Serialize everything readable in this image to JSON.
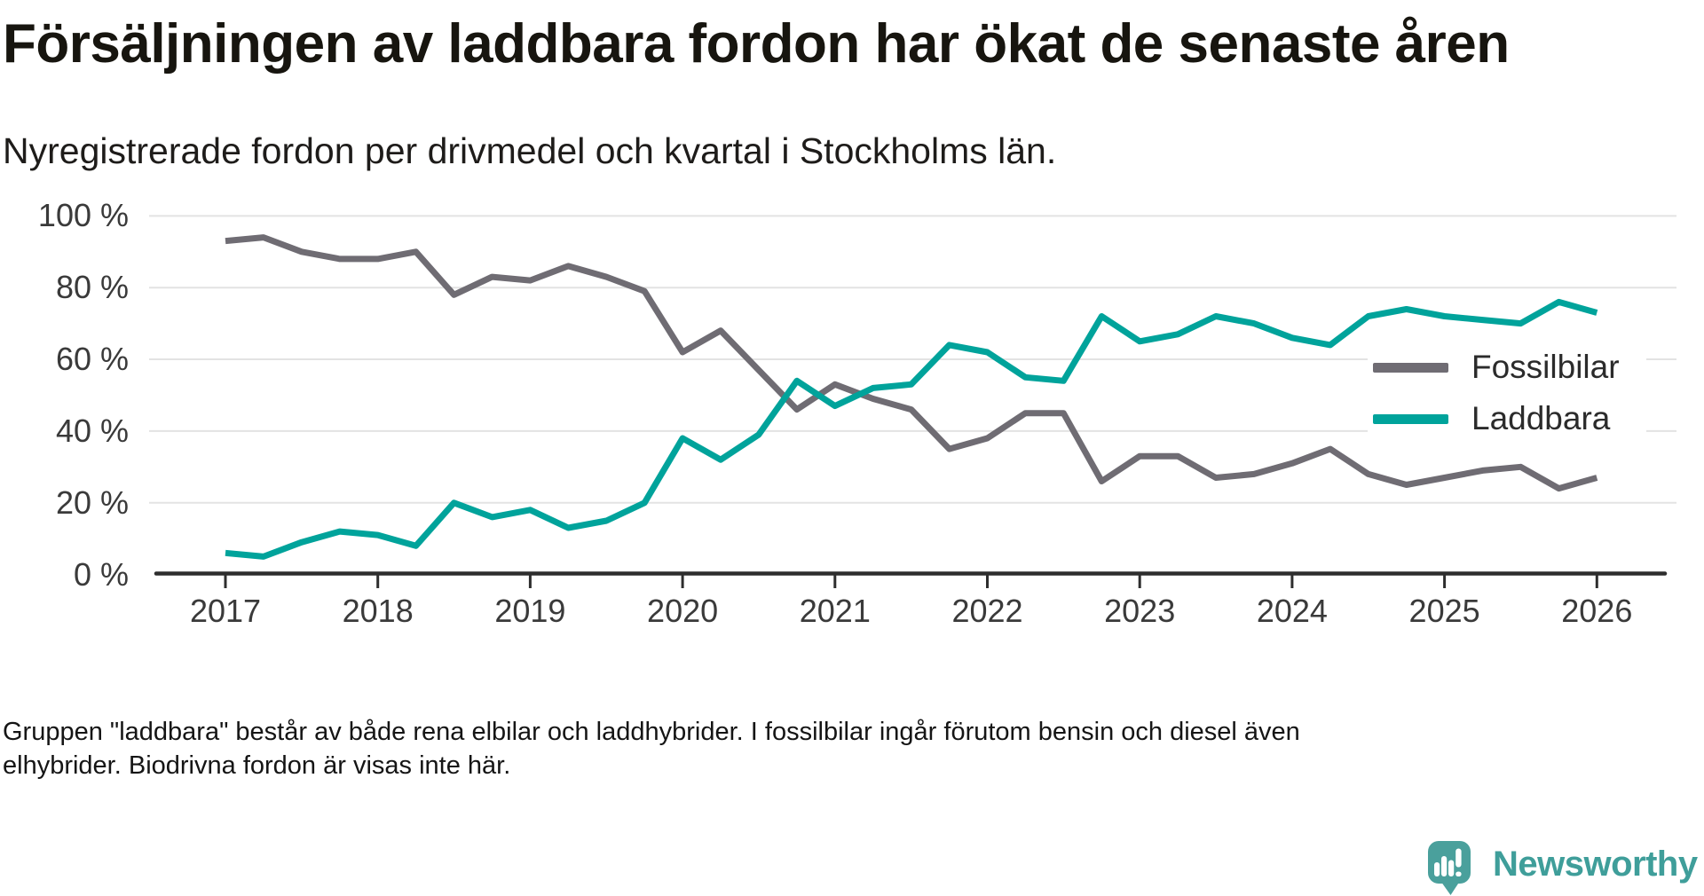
{
  "header": {
    "title": "Försäljningen av laddbara fordon har ökat de senaste åren",
    "subtitle": "Nyregistrerade fordon per drivmedel och kvartal i Stockholms län."
  },
  "footer": {
    "line1": "Gruppen \"laddbara\" består av både rena elbilar och laddhybrider. I fossilbilar ingår förutom bensin och diesel även",
    "line2": "elhybrider. Biodrivna fordon är visas inte här."
  },
  "branding": {
    "logo_text": "Newsworthy",
    "logo_icon": "bar-chart-exclamation-bubble-icon",
    "bubble_color": "#4aa09c",
    "text_color": "#3f9e9a"
  },
  "colors": {
    "fossil_gray": "#6f6c73",
    "laddbara_teal": "#00a39b",
    "gridline": "#e3e3e3",
    "axis": "#2e2e2e",
    "axis_label": "#3a3a3a"
  },
  "chart_data": {
    "type": "line",
    "title": "Försäljningen av laddbara fordon har ökat de senaste åren",
    "subtitle": "Nyregistrerade fordon per drivmedel och kvartal i Stockholms län.",
    "x_unit": "quarter",
    "x_start": "2017 Q1",
    "x_end": "2026 Q1",
    "x_tick_labels": [
      "2017",
      "2018",
      "2019",
      "2020",
      "2021",
      "2022",
      "2023",
      "2024",
      "2025",
      "2026"
    ],
    "y_tick_labels": [
      "0 %",
      "20 %",
      "40 %",
      "60 %",
      "80 %",
      "100 %"
    ],
    "y_tick_values": [
      0,
      20,
      40,
      60,
      80,
      100
    ],
    "ylim": [
      0,
      100
    ],
    "grid": true,
    "legend_position": "right-middle",
    "series": [
      {
        "name": "Fossilbilar",
        "color": "#6f6c73",
        "values": [
          93,
          94,
          90,
          88,
          88,
          90,
          78,
          83,
          82,
          86,
          83,
          79,
          62,
          68,
          57,
          46,
          53,
          49,
          46,
          35,
          38,
          45,
          45,
          26,
          33,
          33,
          27,
          28,
          31,
          35,
          28,
          25,
          27,
          29,
          30,
          24,
          27
        ]
      },
      {
        "name": "Laddbara",
        "color": "#00a39b",
        "values": [
          6,
          5,
          9,
          12,
          11,
          8,
          20,
          16,
          18,
          13,
          15,
          20,
          38,
          32,
          39,
          54,
          47,
          52,
          53,
          64,
          62,
          55,
          54,
          72,
          65,
          67,
          72,
          70,
          66,
          64,
          72,
          74,
          72,
          71,
          70,
          76,
          73
        ]
      }
    ]
  }
}
